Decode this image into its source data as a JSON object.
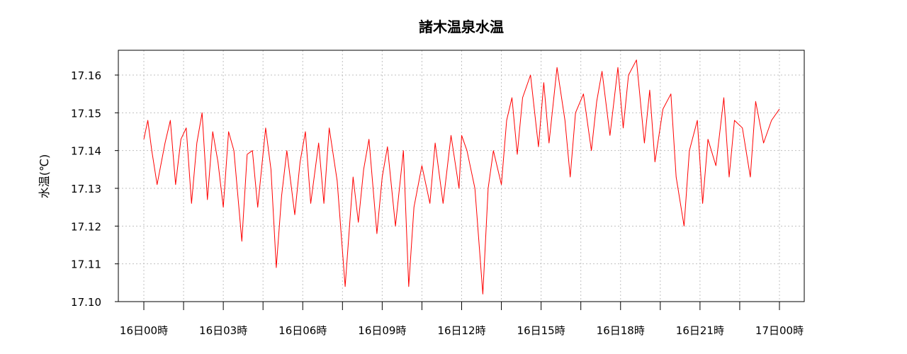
{
  "chart_data": {
    "type": "line",
    "title": "諸木温泉水温",
    "ylabel": "水温(℃)",
    "xlabel": "",
    "ylim": [
      17.1,
      17.165
    ],
    "yticks": [
      "17.10",
      "17.11",
      "17.12",
      "17.13",
      "17.14",
      "17.15",
      "17.16"
    ],
    "x_tick_labels": [
      "16日00時",
      "16日03時",
      "16日06時",
      "16日09時",
      "16日12時",
      "16日15時",
      "16日18時",
      "16日21時",
      "17日00時"
    ],
    "x_unit": "hours since 16日00時",
    "xlim": [
      0,
      24
    ],
    "grid": true,
    "series": [
      {
        "color": "#ff0000",
        "x": [
          0,
          0.15,
          0.3,
          0.5,
          0.8,
          1.0,
          1.2,
          1.4,
          1.6,
          1.8,
          2.0,
          2.2,
          2.4,
          2.6,
          2.8,
          3.0,
          3.2,
          3.4,
          3.7,
          3.9,
          4.1,
          4.3,
          4.6,
          4.8,
          5.0,
          5.2,
          5.4,
          5.7,
          5.9,
          6.1,
          6.3,
          6.6,
          6.8,
          7.0,
          7.3,
          7.6,
          7.9,
          8.1,
          8.3,
          8.5,
          8.8,
          9.0,
          9.2,
          9.5,
          9.8,
          10.0,
          10.2,
          10.5,
          10.8,
          11.0,
          11.3,
          11.6,
          11.9,
          12.0,
          12.2,
          12.5,
          12.8,
          13.0,
          13.2,
          13.5,
          13.7,
          13.9,
          14.1,
          14.3,
          14.6,
          14.9,
          15.1,
          15.3,
          15.6,
          15.9,
          16.1,
          16.3,
          16.6,
          16.9,
          17.1,
          17.3,
          17.6,
          17.9,
          18.1,
          18.3,
          18.6,
          18.9,
          19.1,
          19.3,
          19.6,
          19.9,
          20.1,
          20.4,
          20.6,
          20.9,
          21.1,
          21.3,
          21.6,
          21.9,
          22.1,
          22.3,
          22.6,
          22.9,
          23.1,
          23.4,
          23.7,
          24.0
        ],
        "y": [
          17.143,
          17.148,
          17.14,
          17.131,
          17.142,
          17.148,
          17.131,
          17.143,
          17.146,
          17.126,
          17.142,
          17.15,
          17.127,
          17.145,
          17.137,
          17.125,
          17.145,
          17.14,
          17.116,
          17.139,
          17.14,
          17.125,
          17.146,
          17.135,
          17.109,
          17.128,
          17.14,
          17.123,
          17.137,
          17.145,
          17.126,
          17.142,
          17.126,
          17.146,
          17.132,
          17.104,
          17.133,
          17.121,
          17.135,
          17.143,
          17.118,
          17.133,
          17.141,
          17.12,
          17.14,
          17.104,
          17.125,
          17.136,
          17.126,
          17.142,
          17.126,
          17.144,
          17.13,
          17.144,
          17.14,
          17.13,
          17.102,
          17.13,
          17.14,
          17.131,
          17.148,
          17.154,
          17.139,
          17.154,
          17.16,
          17.141,
          17.158,
          17.142,
          17.162,
          17.148,
          17.133,
          17.15,
          17.155,
          17.14,
          17.153,
          17.161,
          17.144,
          17.162,
          17.146,
          17.16,
          17.164,
          17.142,
          17.156,
          17.137,
          17.151,
          17.155,
          17.133,
          17.12,
          17.14,
          17.148,
          17.126,
          17.143,
          17.136,
          17.154,
          17.133,
          17.148,
          17.146,
          17.133,
          17.153,
          17.142,
          17.148,
          17.151
        ]
      }
    ]
  }
}
